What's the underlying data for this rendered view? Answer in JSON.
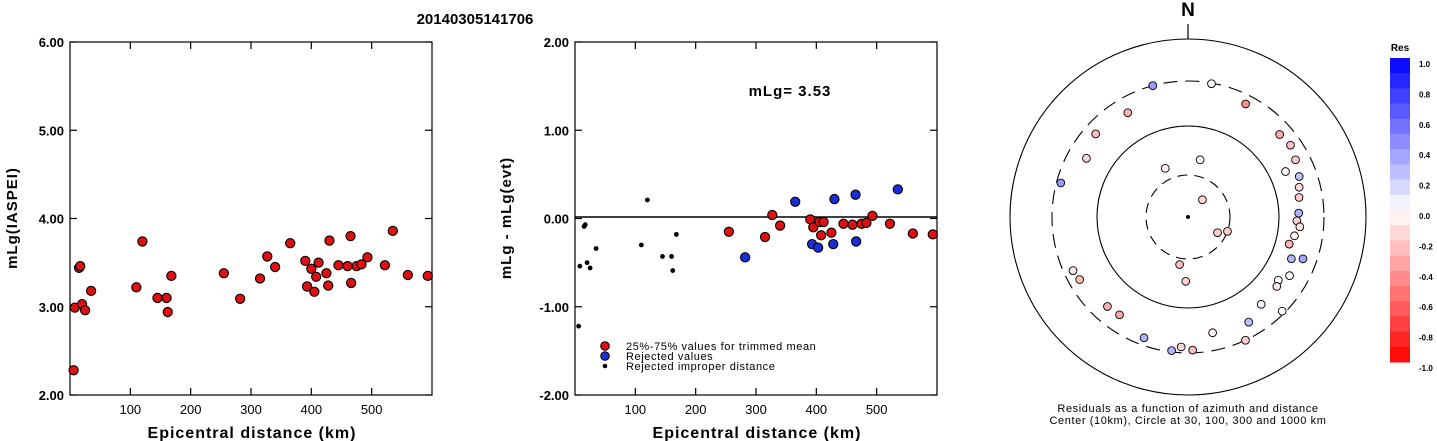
{
  "figure_title": "20140305141706",
  "colors": {
    "accepted": "#dd1111",
    "rejected": "#1a2ed6",
    "improper": "#000000"
  },
  "chart_data": [
    {
      "id": "mlg-vs-distance",
      "type": "scatter",
      "xlabel": "Epicentral distance (km)",
      "ylabel": "mLg(IASPEI)",
      "xlim": [
        0,
        600
      ],
      "ylim": [
        2.0,
        6.0
      ],
      "xticks": [
        "100",
        "200",
        "300",
        "400",
        "500"
      ],
      "yticks": [
        "2.00",
        "3.00",
        "4.00",
        "5.00",
        "6.00"
      ],
      "series": [
        {
          "points": [
            [
              6,
              2.28
            ],
            [
              8,
              2.99
            ],
            [
              15,
              3.44
            ],
            [
              17,
              3.46
            ],
            [
              20,
              3.03
            ],
            [
              25,
              2.96
            ],
            [
              35,
              3.18
            ],
            [
              110,
              3.22
            ],
            [
              120,
              3.74
            ],
            [
              145,
              3.1
            ],
            [
              160,
              3.1
            ],
            [
              162,
              2.94
            ],
            [
              168,
              3.35
            ],
            [
              255,
              3.38
            ],
            [
              282,
              3.09
            ],
            [
              315,
              3.32
            ],
            [
              327,
              3.57
            ],
            [
              340,
              3.45
            ],
            [
              365,
              3.72
            ],
            [
              390,
              3.52
            ],
            [
              393,
              3.23
            ],
            [
              400,
              3.43
            ],
            [
              405,
              3.17
            ],
            [
              408,
              3.34
            ],
            [
              412,
              3.5
            ],
            [
              425,
              3.38
            ],
            [
              428,
              3.24
            ],
            [
              430,
              3.75
            ],
            [
              445,
              3.47
            ],
            [
              460,
              3.46
            ],
            [
              465,
              3.8
            ],
            [
              466,
              3.27
            ],
            [
              475,
              3.46
            ],
            [
              483,
              3.48
            ],
            [
              493,
              3.56
            ],
            [
              522,
              3.47
            ],
            [
              535,
              3.86
            ],
            [
              560,
              3.36
            ],
            [
              593,
              3.35
            ]
          ]
        }
      ]
    },
    {
      "id": "residual-vs-distance",
      "type": "scatter",
      "xlabel": "Epicentral distance (km)",
      "ylabel": "mLg - mLg(evt)",
      "xlim": [
        0,
        600
      ],
      "ylim": [
        -2.0,
        2.0
      ],
      "xticks": [
        "100",
        "200",
        "300",
        "400",
        "500"
      ],
      "yticks": [
        "-2.00",
        "-1.00",
        "0.00",
        "1.00",
        "2.00"
      ],
      "annotation": "mLg= 3.53",
      "legend": [
        "25%-75% values for trimmed mean",
        "Rejected values",
        "Rejected improper distance"
      ],
      "series": [
        {
          "kind": "accepted",
          "points": [
            [
              255,
              -0.15
            ],
            [
              315,
              -0.21
            ],
            [
              327,
              0.04
            ],
            [
              340,
              -0.08
            ],
            [
              390,
              -0.01
            ],
            [
              395,
              -0.1
            ],
            [
              405,
              -0.04
            ],
            [
              408,
              -0.19
            ],
            [
              412,
              -0.04
            ],
            [
              425,
              -0.16
            ],
            [
              445,
              -0.06
            ],
            [
              460,
              -0.07
            ],
            [
              475,
              -0.06
            ],
            [
              483,
              -0.05
            ],
            [
              493,
              0.03
            ],
            [
              522,
              -0.06
            ],
            [
              560,
              -0.17
            ],
            [
              593,
              -0.18
            ]
          ]
        },
        {
          "kind": "rejected",
          "points": [
            [
              282,
              -0.44
            ],
            [
              365,
              0.19
            ],
            [
              393,
              -0.29
            ],
            [
              403,
              -0.33
            ],
            [
              428,
              -0.29
            ],
            [
              430,
              0.22
            ],
            [
              465,
              0.27
            ],
            [
              466,
              -0.26
            ],
            [
              535,
              0.33
            ]
          ]
        },
        {
          "kind": "improper",
          "points": [
            [
              6,
              -1.22
            ],
            [
              8,
              -0.54
            ],
            [
              15,
              -0.09
            ],
            [
              17,
              -0.07
            ],
            [
              20,
              -0.5
            ],
            [
              25,
              -0.56
            ],
            [
              35,
              -0.34
            ],
            [
              110,
              -0.3
            ],
            [
              120,
              0.21
            ],
            [
              145,
              -0.43
            ],
            [
              160,
              -0.43
            ],
            [
              162,
              -0.59
            ],
            [
              168,
              -0.18
            ]
          ]
        }
      ]
    },
    {
      "id": "azimuth-polar",
      "type": "scatter",
      "north_label": "N",
      "caption_line1": "Residuals as a function of azimuth and distance",
      "caption_line2": "Center (10km), Circle at 30, 100, 300 and 1000 km",
      "colorbar_title": "Res",
      "colorbar_ticks": [
        "1.0",
        "0.8",
        "0.6",
        "0.4",
        "0.2",
        "0.0",
        "-0.2",
        "-0.4",
        "-0.6",
        "-0.8",
        "-1.0"
      ],
      "points_az_dist_res": [
        [
          40,
          18,
          -0.15
        ],
        [
          118,
          24,
          -0.2
        ],
        [
          110,
          30,
          -0.2
        ],
        [
          182,
          52,
          -0.18
        ],
        [
          190,
          35,
          -0.25
        ],
        [
          335,
          40,
          -0.05
        ],
        [
          12,
          45,
          0.0
        ],
        [
          105,
          140,
          -0.3
        ],
        [
          100,
          152,
          -0.05
        ],
        [
          92,
          155,
          -0.18
        ],
        [
          88,
          162,
          0.3
        ],
        [
          95,
          168,
          -0.1
        ],
        [
          80,
          170,
          -0.2
        ],
        [
          75,
          180,
          -0.15
        ],
        [
          70,
          195,
          0.25
        ],
        [
          62,
          212,
          -0.2
        ],
        [
          55,
          230,
          -0.25
        ],
        [
          48,
          220,
          -0.35
        ],
        [
          65,
          150,
          0.0
        ],
        [
          112,
          165,
          0.3
        ],
        [
          120,
          190,
          0.0
        ],
        [
          125,
          160,
          0.0
        ],
        [
          128,
          170,
          -0.1
        ],
        [
          140,
          175,
          0.05
        ],
        [
          150,
          210,
          0.25
        ],
        [
          168,
          195,
          -0.05
        ],
        [
          178,
          280,
          -0.25
        ],
        [
          183,
          260,
          -0.15
        ],
        [
          187,
          290,
          0.3
        ],
        [
          200,
          250,
          0.3
        ],
        [
          215,
          200,
          -0.35
        ],
        [
          222,
          205,
          -0.3
        ],
        [
          240,
          230,
          -0.25
        ],
        [
          245,
          240,
          -0.1
        ],
        [
          285,
          270,
          0.4
        ],
        [
          300,
          190,
          -0.15
        ],
        [
          312,
          225,
          -0.25
        ],
        [
          330,
          205,
          -0.3
        ],
        [
          345,
          300,
          0.4
        ],
        [
          10,
          295,
          0.0
        ],
        [
          27,
          240,
          -0.45
        ],
        [
          135,
          280,
          0.0
        ],
        [
          155,
          300,
          -0.2
        ],
        [
          110,
          215,
          0.35
        ]
      ]
    }
  ]
}
